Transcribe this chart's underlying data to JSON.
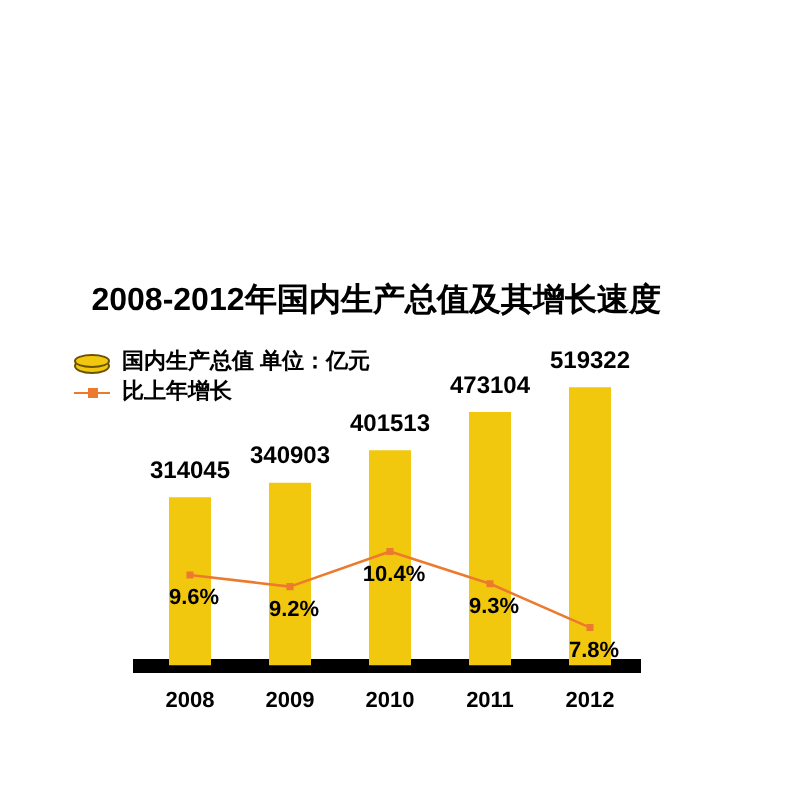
{
  "chart_data": {
    "type": "bar",
    "title": "2008-2012年国内生产总值及其增长速度",
    "categories": [
      "2008",
      "2009",
      "2010",
      "2011",
      "2012"
    ],
    "series": [
      {
        "name": "国内生产总值 单位：亿元",
        "color": "#f2c80f",
        "values": [
          314045,
          340903,
          401513,
          473104,
          519322
        ],
        "value_labels": [
          "314045",
          "340903",
          "401513",
          "473104",
          "519322"
        ]
      },
      {
        "name": "比上年增长",
        "type": "line",
        "axis": "y2",
        "color": "#ec7a2e",
        "values": [
          9.6,
          9.2,
          10.4,
          9.3,
          7.8
        ],
        "value_labels": [
          "9.6%",
          "9.2%",
          "10.4%",
          "9.3%",
          "7.8%"
        ]
      }
    ],
    "legend": "top left",
    "marker": "square",
    "tick_labels": "x"
  }
}
